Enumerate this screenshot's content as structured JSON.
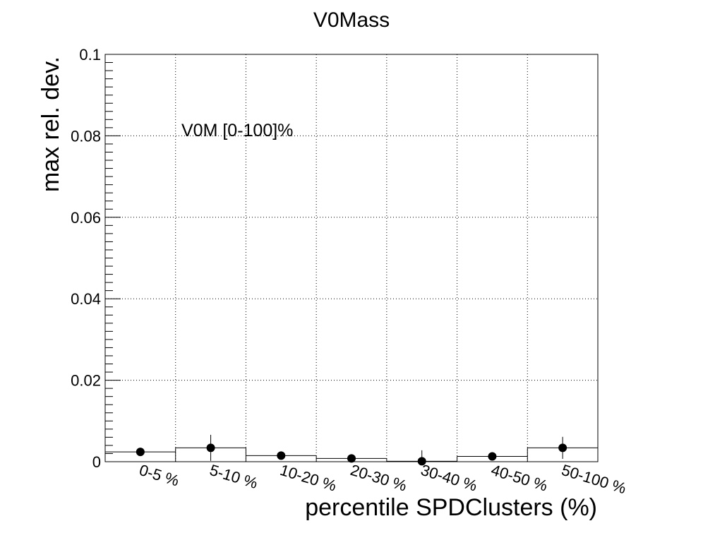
{
  "chart_data": {
    "type": "scatter",
    "title": "V0Mass",
    "xlabel": "percentile SPDClusters (%)",
    "ylabel": "max rel. dev.",
    "annotation": "V0M [0-100]%",
    "categories": [
      "0-5 %",
      "5-10 %",
      "10-20 %",
      "20-30 %",
      "30-40 %",
      "40-50 %",
      "50-100 %"
    ],
    "values": [
      0.0024,
      0.0034,
      0.0015,
      0.0008,
      0.0001,
      0.0013,
      0.0034
    ],
    "errors": [
      0.0005,
      0.0032,
      0.0006,
      0.0006,
      0.0027,
      0.0006,
      0.0027
    ],
    "ylim": [
      0,
      0.1
    ],
    "yticks": [
      "0",
      "0.02",
      "0.04",
      "0.06",
      "0.08",
      "0.1"
    ],
    "ytick_values": [
      0,
      0.02,
      0.04,
      0.06,
      0.08,
      0.1
    ],
    "grid": true
  }
}
